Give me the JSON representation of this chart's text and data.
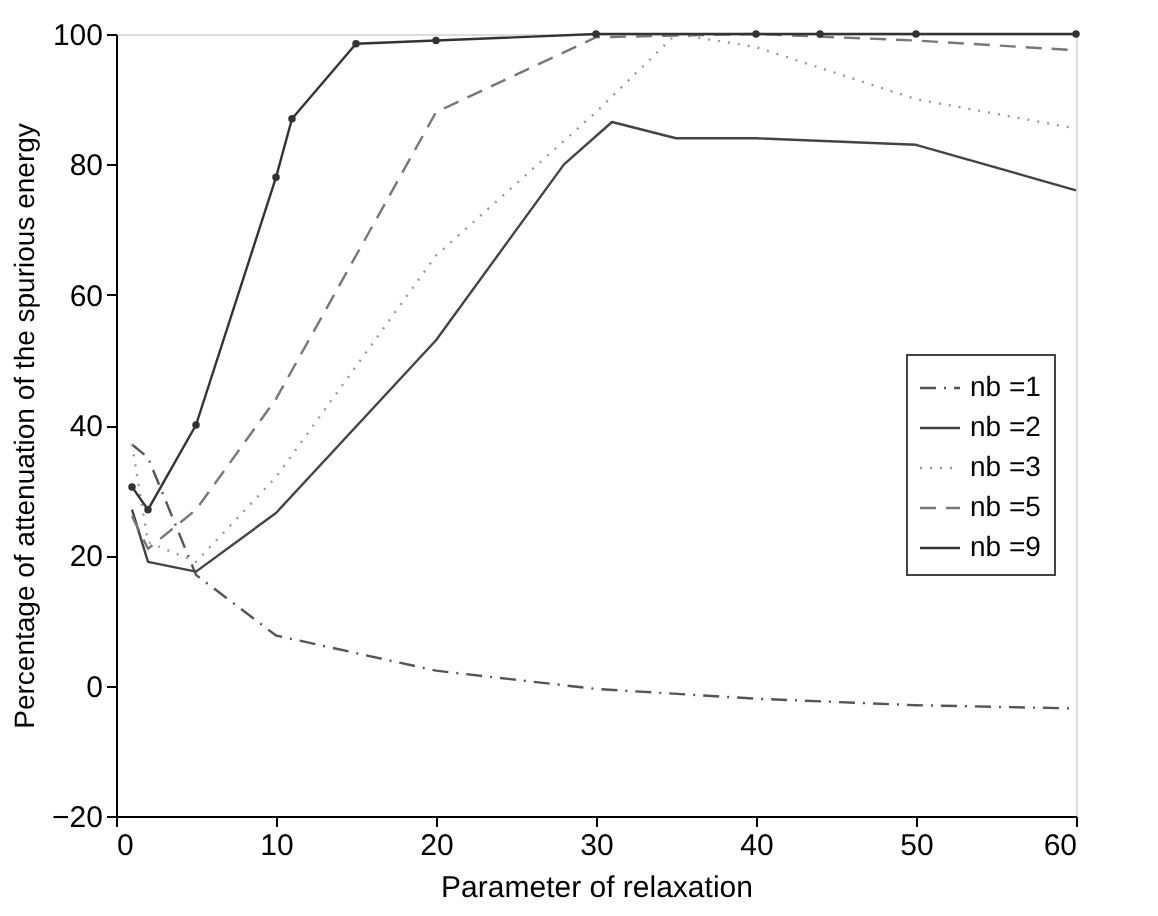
{
  "chart_data": {
    "type": "line",
    "xlabel": "Parameter of relaxation",
    "ylabel": "Percentage of attenuation of the spurious energy",
    "xlim": [
      0,
      60
    ],
    "xticks": [
      0,
      10,
      20,
      30,
      40,
      50,
      60
    ],
    "ylim": [
      -20,
      100
    ],
    "yticks": [
      -20,
      0,
      20,
      40,
      60,
      80,
      100
    ],
    "grid": false,
    "legend": "right",
    "series": [
      {
        "name": "nb =1",
        "color": "#555555",
        "line_style": "dashdot",
        "marker": "none",
        "x": [
          1,
          2,
          5,
          10,
          20,
          30,
          40,
          50,
          60
        ],
        "values": [
          37,
          35,
          17,
          7.7,
          2.3,
          -0.5,
          -2,
          -3,
          -3.5
        ]
      },
      {
        "name": "nb =2",
        "color": "#444444",
        "line_style": "solid",
        "marker": "none",
        "x": [
          1,
          2,
          5,
          10,
          20,
          28,
          31,
          35,
          40,
          50,
          60
        ],
        "values": [
          27,
          19,
          17.5,
          26.5,
          53,
          80,
          86.5,
          84,
          84,
          83,
          76
        ]
      },
      {
        "name": "nb =3",
        "color": "#999999",
        "line_style": "dotted",
        "marker": "none",
        "x": [
          1,
          2,
          5,
          10,
          20,
          30,
          35,
          40,
          50,
          60
        ],
        "values": [
          37,
          22,
          19,
          32,
          66,
          88,
          100,
          98,
          90,
          85.5
        ]
      },
      {
        "name": "nb =5",
        "color": "#777777",
        "line_style": "dashed",
        "marker": "none",
        "x": [
          1,
          2,
          5,
          10,
          20,
          30,
          40,
          50,
          60
        ],
        "values": [
          26,
          21,
          27,
          44,
          88,
          99.5,
          100,
          99,
          97.5
        ]
      },
      {
        "name": "nb =9",
        "color": "#333333",
        "line_style": "solid",
        "marker": "circle",
        "x": [
          1,
          2,
          5,
          10,
          11,
          15,
          20,
          30,
          40,
          44,
          50,
          60
        ],
        "values": [
          30.5,
          27,
          40,
          78,
          87,
          98.5,
          99,
          100,
          100,
          100,
          100,
          100
        ]
      }
    ]
  }
}
